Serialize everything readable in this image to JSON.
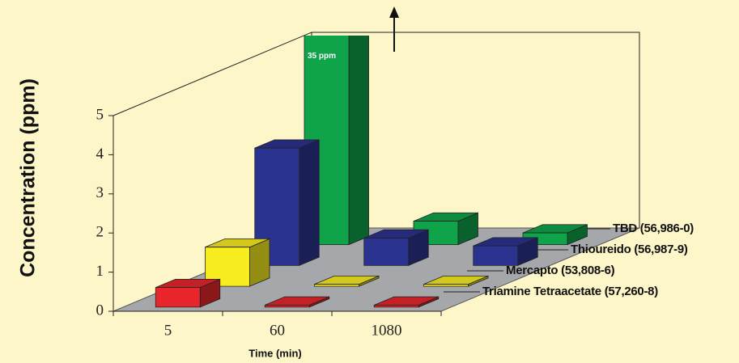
{
  "chart_data": {
    "type": "bar3d",
    "y_label": "Concentration (ppm)",
    "x_label": "Time (min)",
    "categories": [
      "5",
      "60",
      "1080"
    ],
    "ylim": [
      0,
      5
    ],
    "yticks": [
      0,
      1,
      2,
      3,
      4,
      5
    ],
    "series": [
      {
        "name": "Triamine Tetraacetate (57,260-8)",
        "color": "#e8262b",
        "values": [
          0.5,
          0.05,
          0.05
        ]
      },
      {
        "name": "Mercapto (53,808-6)",
        "color": "#f7ec1e",
        "values": [
          1.0,
          0.05,
          0.05
        ]
      },
      {
        "name": "Thioureido (56,987-9)",
        "color": "#2b3390",
        "values": [
          3.0,
          0.7,
          0.5
        ]
      },
      {
        "name": "TBD (56,986-0)",
        "color": "#0fa34a",
        "values": [
          35,
          0.6,
          0.3
        ],
        "value_labels": [
          "35 ppm",
          null,
          null
        ]
      }
    ]
  }
}
